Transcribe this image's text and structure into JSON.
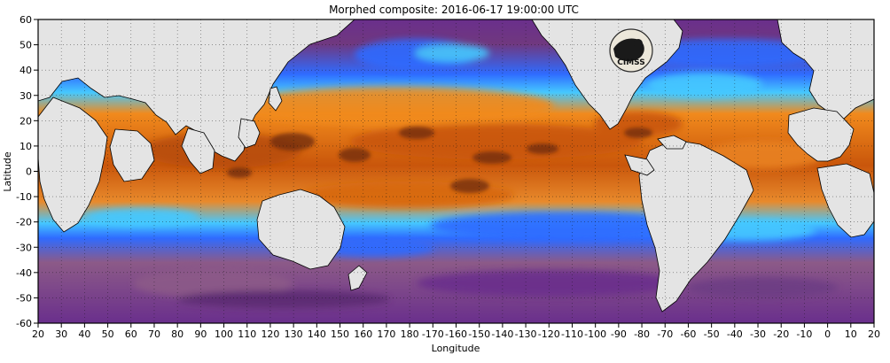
{
  "title": "Morphed composite: 2016-06-17 19:00:00 UTC",
  "xlabel": "Longitude",
  "ylabel": "Latitude",
  "logo_text": "CIMSS",
  "map": {
    "projection": "equirectangular",
    "lon_range_deg_east": [
      20,
      380
    ],
    "lat_range": [
      -60,
      60
    ],
    "x_ticks": [
      "20",
      "30",
      "40",
      "50",
      "60",
      "70",
      "80",
      "90",
      "100",
      "110",
      "120",
      "130",
      "140",
      "150",
      "160",
      "170",
      "180",
      "-170",
      "-160",
      "-150",
      "-140",
      "-130",
      "-120",
      "-110",
      "-100",
      "-90",
      "-80",
      "-70",
      "-60",
      "-50",
      "-40",
      "-30",
      "-20",
      "-10",
      "0",
      "10",
      "20"
    ],
    "y_ticks": [
      "60",
      "50",
      "40",
      "30",
      "20",
      "10",
      "0",
      "-10",
      "-20",
      "-30",
      "-40",
      "-50",
      "-60"
    ],
    "dotted_grid": true,
    "colors": {
      "land": "#e4e4e4",
      "dry_purple": "#6a2f8c",
      "deep_purple": "#4b2a66",
      "mauve": "#8c5a88",
      "blue": "#2f6bff",
      "light_blue": "#45c8ff",
      "cyan": "#66f0e8",
      "green": "#98f07a",
      "yellow": "#f4e46a",
      "orange": "#f18a1d",
      "dark_orange": "#c9560b",
      "brown": "#6d2c0e"
    }
  }
}
